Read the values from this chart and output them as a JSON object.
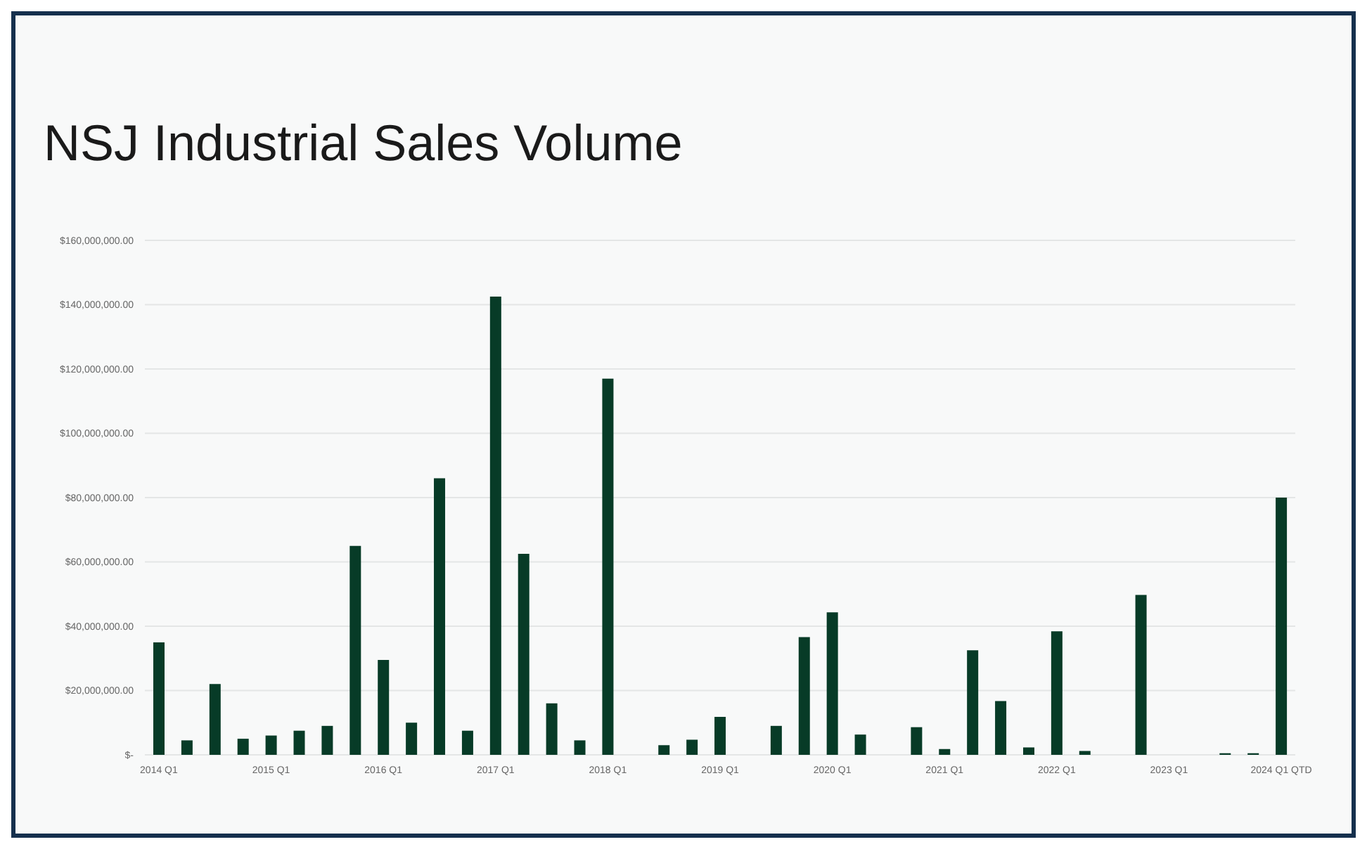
{
  "chart_data": {
    "type": "bar",
    "title": "NSJ Industrial Sales Volume",
    "categories": [
      "2014 Q1",
      null,
      null,
      null,
      "2015 Q1",
      null,
      null,
      null,
      "2016 Q1",
      null,
      null,
      null,
      "2017 Q1",
      null,
      null,
      null,
      "2018 Q1",
      null,
      null,
      null,
      "2019 Q1",
      null,
      null,
      null,
      "2020 Q1",
      null,
      null,
      null,
      "2021 Q1",
      null,
      null,
      null,
      "2022 Q1",
      null,
      null,
      null,
      "2023 Q1",
      null,
      null,
      null,
      "2024 Q1 QTD"
    ],
    "values": [
      35000000,
      4500000,
      22000000,
      5000000,
      6000000,
      7500000,
      9000000,
      65000000,
      29500000,
      10000000,
      86000000,
      7500000,
      142500000,
      62500000,
      16000000,
      4500000,
      117000000,
      0,
      3000000,
      4700000,
      11800000,
      0,
      9000000,
      36600000,
      44300000,
      6300000,
      0,
      8600000,
      1800000,
      32500000,
      16700000,
      2300000,
      38400000,
      1200000,
      0,
      49700000,
      0,
      0,
      500000,
      500000,
      80000000
    ],
    "color": "#073b27",
    "ylim": [
      0,
      160000000
    ],
    "yticks": [
      {
        "value": 0,
        "label": "$-"
      },
      {
        "value": 20000000,
        "label": "$20,000,000.00"
      },
      {
        "value": 40000000,
        "label": "$40,000,000.00"
      },
      {
        "value": 60000000,
        "label": "$60,000,000.00"
      },
      {
        "value": 80000000,
        "label": "$80,000,000.00"
      },
      {
        "value": 100000000,
        "label": "$100,000,000.00"
      },
      {
        "value": 120000000,
        "label": "$120,000,000.00"
      },
      {
        "value": 140000000,
        "label": "$140,000,000.00"
      },
      {
        "value": 160000000,
        "label": "$160,000,000.00"
      }
    ],
    "grid": "y"
  }
}
